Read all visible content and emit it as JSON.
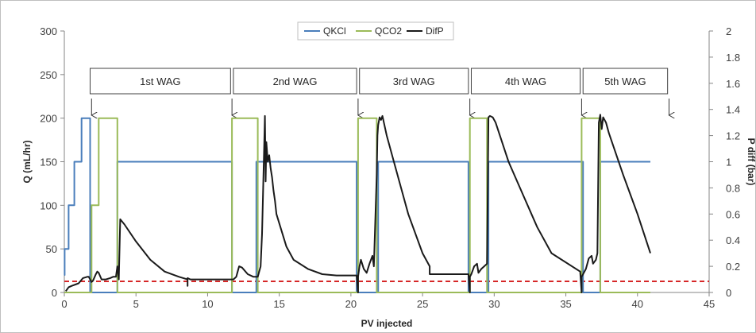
{
  "chart_data": {
    "type": "line",
    "xlabel": "PV injected",
    "ylabel": "Q (mL/hr)",
    "y2label": "P diff (bar)",
    "xlim": [
      0,
      45
    ],
    "ylim": [
      0,
      300
    ],
    "y2lim": [
      0,
      2
    ],
    "x_ticks": [
      "0",
      "5",
      "10",
      "15",
      "20",
      "25",
      "30",
      "35",
      "40",
      "45"
    ],
    "y_ticks": [
      "0",
      "50",
      "100",
      "150",
      "200",
      "250",
      "300"
    ],
    "y2_ticks": [
      "0",
      "0.2",
      "0.4",
      "0.6",
      "0.8",
      "1",
      "1.2",
      "1.4",
      "1.6",
      "1.8",
      "2"
    ],
    "grid": false,
    "legend_position": "top-center",
    "phases": [
      {
        "label": "1st WAG",
        "start": 1.8,
        "end": 11.6
      },
      {
        "label": "2nd WAG",
        "start": 11.8,
        "end": 20.4
      },
      {
        "label": "3rd WAG",
        "start": 20.6,
        "end": 28.2
      },
      {
        "label": "4th WAG",
        "start": 28.4,
        "end": 36.0
      },
      {
        "label": "5th WAG",
        "start": 36.2,
        "end": 42.1
      }
    ],
    "phase_arrows_x": [
      1.9,
      11.7,
      20.5,
      28.3,
      36.1,
      42.2
    ],
    "reference_line": {
      "y2": 0.085,
      "color": "#d62728",
      "style": "dashed"
    },
    "series": [
      {
        "name": "QKCl",
        "axis": "left",
        "color": "#4a7ebb",
        "x": [
          0,
          0.02,
          0.02,
          0.3,
          0.3,
          0.7,
          0.7,
          1.2,
          1.2,
          1.8,
          1.8,
          2.1,
          2.1,
          3.7,
          3.7,
          11.7,
          11.7,
          13.4,
          13.4,
          20.4,
          20.4,
          21.9,
          21.9,
          28.2,
          28.2,
          29.6,
          29.6,
          36.2,
          36.2,
          37.4,
          37.4,
          40.9
        ],
        "y": [
          20,
          20,
          50,
          50,
          100,
          100,
          150,
          150,
          200,
          200,
          0,
          0,
          0,
          0,
          150,
          150,
          0,
          0,
          150,
          150,
          0,
          0,
          150,
          150,
          0,
          0,
          150,
          150,
          0,
          0,
          150,
          150
        ]
      },
      {
        "name": "QCO2",
        "axis": "left",
        "color": "#9bbb59",
        "x": [
          0,
          1.9,
          1.9,
          2.4,
          2.4,
          3.7,
          3.7,
          11.7,
          11.7,
          13.5,
          13.5,
          20.5,
          20.5,
          21.8,
          21.8,
          28.3,
          28.3,
          29.5,
          29.5,
          36.1,
          36.1,
          37.4,
          37.4,
          40.9
        ],
        "y": [
          0,
          0,
          100,
          100,
          200,
          200,
          0,
          0,
          200,
          200,
          0,
          0,
          200,
          200,
          0,
          0,
          200,
          200,
          0,
          0,
          200,
          200,
          0,
          0
        ]
      },
      {
        "name": "DifP",
        "axis": "right",
        "color": "#1a1a1a",
        "x": [
          0.1,
          0.3,
          0.5,
          1.0,
          1.3,
          1.6,
          1.7,
          1.9,
          2.0,
          2.2,
          2.3,
          2.4,
          2.6,
          2.9,
          3.2,
          3.4,
          3.6,
          3.7,
          3.8,
          3.9,
          4.2,
          5,
          6,
          7,
          8,
          8.6,
          8.6,
          8.6,
          8.8,
          10,
          11.6,
          11.8,
          12.0,
          12.2,
          12.4,
          12.8,
          13.2,
          13.5,
          13.7,
          13.8,
          14.0,
          14.05,
          14.1,
          14.2,
          14.3,
          14.4,
          14.5,
          14.6,
          14.7,
          14.8,
          15.5,
          16,
          17,
          18,
          19,
          20.4,
          20.5,
          20.5,
          20.6,
          20.7,
          20.9,
          21.1,
          21.3,
          21.5,
          21.6,
          21.8,
          21.85,
          21.9,
          22.0,
          22.1,
          22.2,
          22.3,
          22.5,
          23,
          24,
          25,
          25.5,
          25.5,
          25.6,
          25.8,
          26,
          27,
          28.2,
          28.3,
          28.3,
          28.4,
          28.6,
          28.8,
          28.9,
          29.1,
          29.3,
          29.5,
          29.6,
          29.7,
          29.9,
          30.1,
          31,
          32,
          33,
          34,
          36.0,
          36.1,
          36.1,
          36.2,
          36.4,
          36.6,
          36.8,
          36.9,
          37.1,
          37.2,
          37.3,
          37.4,
          37.5,
          37.6,
          37.8,
          38,
          39,
          40,
          40.9
        ],
        "y": [
          0.01,
          0.04,
          0.05,
          0.07,
          0.11,
          0.12,
          0.12,
          0.08,
          0.09,
          0.14,
          0.16,
          0.15,
          0.1,
          0.1,
          0.11,
          0.12,
          0.12,
          0.2,
          0.1,
          0.56,
          0.52,
          0.39,
          0.25,
          0.16,
          0.12,
          0.1,
          0.05,
          0.11,
          0.1,
          0.1,
          0.1,
          0.1,
          0.12,
          0.2,
          0.19,
          0.14,
          0.12,
          0.12,
          0.2,
          0.45,
          1.35,
          0.85,
          1.15,
          1.0,
          1.05,
          0.95,
          0.88,
          0.78,
          0.7,
          0.6,
          0.35,
          0.25,
          0.18,
          0.14,
          0.13,
          0.13,
          0.0,
          0.12,
          0.2,
          0.25,
          0.18,
          0.15,
          0.22,
          0.28,
          0.2,
          0.9,
          1.2,
          1.28,
          1.34,
          1.32,
          1.35,
          1.3,
          1.2,
          1.0,
          0.6,
          0.3,
          0.2,
          0.14,
          0.14,
          0.14,
          0.14,
          0.14,
          0.14,
          0.0,
          0.12,
          0.14,
          0.2,
          0.22,
          0.15,
          0.18,
          0.2,
          0.22,
          1.34,
          1.35,
          1.34,
          1.3,
          1.0,
          0.75,
          0.5,
          0.3,
          0.16,
          0.0,
          0.12,
          0.14,
          0.18,
          0.26,
          0.28,
          0.22,
          0.25,
          0.3,
          1.3,
          1.36,
          1.25,
          1.34,
          1.3,
          1.22,
          0.9,
          0.6,
          0.3
        ]
      }
    ]
  }
}
